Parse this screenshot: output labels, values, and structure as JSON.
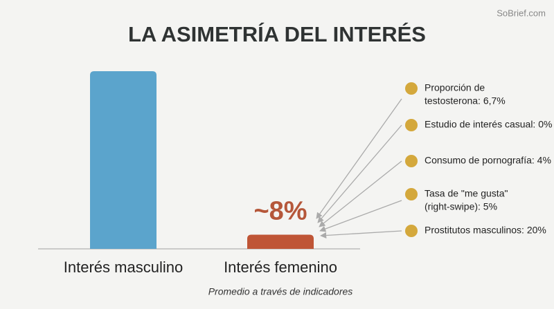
{
  "chart_data": {
    "type": "bar",
    "title": "LA ASIMETRÍA DEL INTERÉS",
    "watermark": "SoBrief.com",
    "categories": [
      "Interés masculino",
      "Interés femenino"
    ],
    "values": [
      100,
      8
    ],
    "value_labels": [
      null,
      "~8%"
    ],
    "colors": [
      "#5ba4cc",
      "#bf5536"
    ],
    "note": "Promedio a través de indicadores",
    "annotations": [
      [
        "Proporción de",
        "testosterona: 6,7%"
      ],
      [
        "Estudio de interés casual: 0%"
      ],
      [
        "Consumo de pornografía: 4%"
      ],
      [
        "Tasa de \"me gusta\"",
        "(right-swipe): 5%"
      ],
      [
        "Prostitutos masculinos: 20%"
      ]
    ]
  }
}
